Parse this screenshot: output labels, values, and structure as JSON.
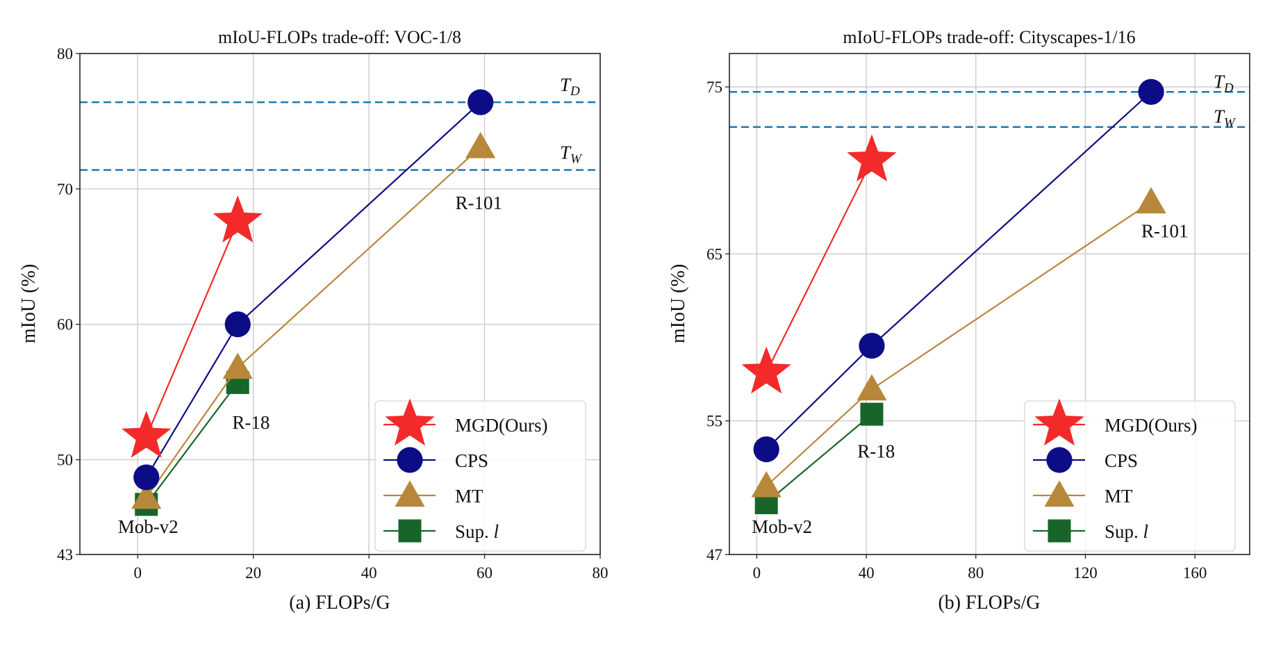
{
  "chart_data": [
    {
      "type": "line",
      "title": "mIoU-FLOPs trade-off: VOC-1/8",
      "xlabel": "(a) FLOPs/G",
      "ylabel": "mIoU (%)",
      "xlim": [
        -10,
        80
      ],
      "ylim": [
        43,
        80
      ],
      "xticks": [
        0,
        20,
        40,
        60,
        80
      ],
      "yticks": [
        43,
        50,
        60,
        70,
        80
      ],
      "grid": true,
      "legend_position": "lower-right",
      "series": [
        {
          "name": "MGD(Ours)",
          "marker": "star",
          "color": "#f22a2a",
          "x": [
            1.5,
            17.3
          ],
          "y": [
            51.7,
            67.6
          ]
        },
        {
          "name": "CPS",
          "marker": "circle",
          "color": "#0c0c86",
          "x": [
            1.5,
            17.3,
            59.3
          ],
          "y": [
            48.7,
            60.0,
            76.4
          ]
        },
        {
          "name": "MT",
          "marker": "triangle",
          "color": "#b7883b",
          "x": [
            1.5,
            17.3,
            59.3
          ],
          "y": [
            47.2,
            56.8,
            73.1
          ]
        },
        {
          "name": "Sup. l",
          "name_prefix": "Sup. ",
          "name_italic": "l",
          "marker": "square",
          "color": "#17652a",
          "x": [
            1.5,
            17.3
          ],
          "y": [
            46.7,
            55.7
          ]
        }
      ],
      "hlines": [
        {
          "label": "T",
          "sub": "D",
          "y": 76.4,
          "color": "#1f77b4"
        },
        {
          "label": "T",
          "sub": "W",
          "y": 71.4,
          "color": "#1f77b4"
        }
      ],
      "annotations": [
        {
          "text": "Mob-v2",
          "x": 1.8,
          "y": 44.6
        },
        {
          "text": "R-18",
          "x": 19.6,
          "y": 52.3
        },
        {
          "text": "R-101",
          "x": 59,
          "y": 68.5
        }
      ]
    },
    {
      "type": "line",
      "title": "mIoU-FLOPs trade-off: Cityscapes-1/16",
      "xlabel": "(b) FLOPs/G",
      "ylabel": "mIoU (%)",
      "xlim": [
        -10,
        180
      ],
      "ylim": [
        47,
        77
      ],
      "xticks": [
        0,
        40,
        80,
        120,
        160
      ],
      "yticks": [
        47,
        55,
        65,
        75
      ],
      "grid": true,
      "legend_position": "lower-right",
      "series": [
        {
          "name": "MGD(Ours)",
          "marker": "star",
          "color": "#f22a2a",
          "x": [
            3.5,
            42
          ],
          "y": [
            57.9,
            70.6
          ]
        },
        {
          "name": "CPS",
          "marker": "circle",
          "color": "#0c0c86",
          "x": [
            3.5,
            42,
            144
          ],
          "y": [
            53.3,
            59.5,
            74.7
          ]
        },
        {
          "name": "MT",
          "marker": "triangle",
          "color": "#b7883b",
          "x": [
            3.5,
            42,
            144
          ],
          "y": [
            51.1,
            56.9,
            68.1
          ]
        },
        {
          "name": "Sup. l",
          "name_prefix": "Sup. ",
          "name_italic": "l",
          "marker": "square",
          "color": "#17652a",
          "x": [
            3.5,
            42
          ],
          "y": [
            50.1,
            55.4
          ]
        }
      ],
      "hlines": [
        {
          "label": "T",
          "sub": "D",
          "y": 74.7,
          "color": "#1f77b4"
        },
        {
          "label": "T",
          "sub": "W",
          "y": 72.6,
          "color": "#1f77b4"
        }
      ],
      "annotations": [
        {
          "text": "Mob-v2",
          "x": 9.2,
          "y": 48.3
        },
        {
          "text": "R-18",
          "x": 43.6,
          "y": 52.8
        },
        {
          "text": "R-101",
          "x": 149,
          "y": 66
        }
      ]
    }
  ]
}
